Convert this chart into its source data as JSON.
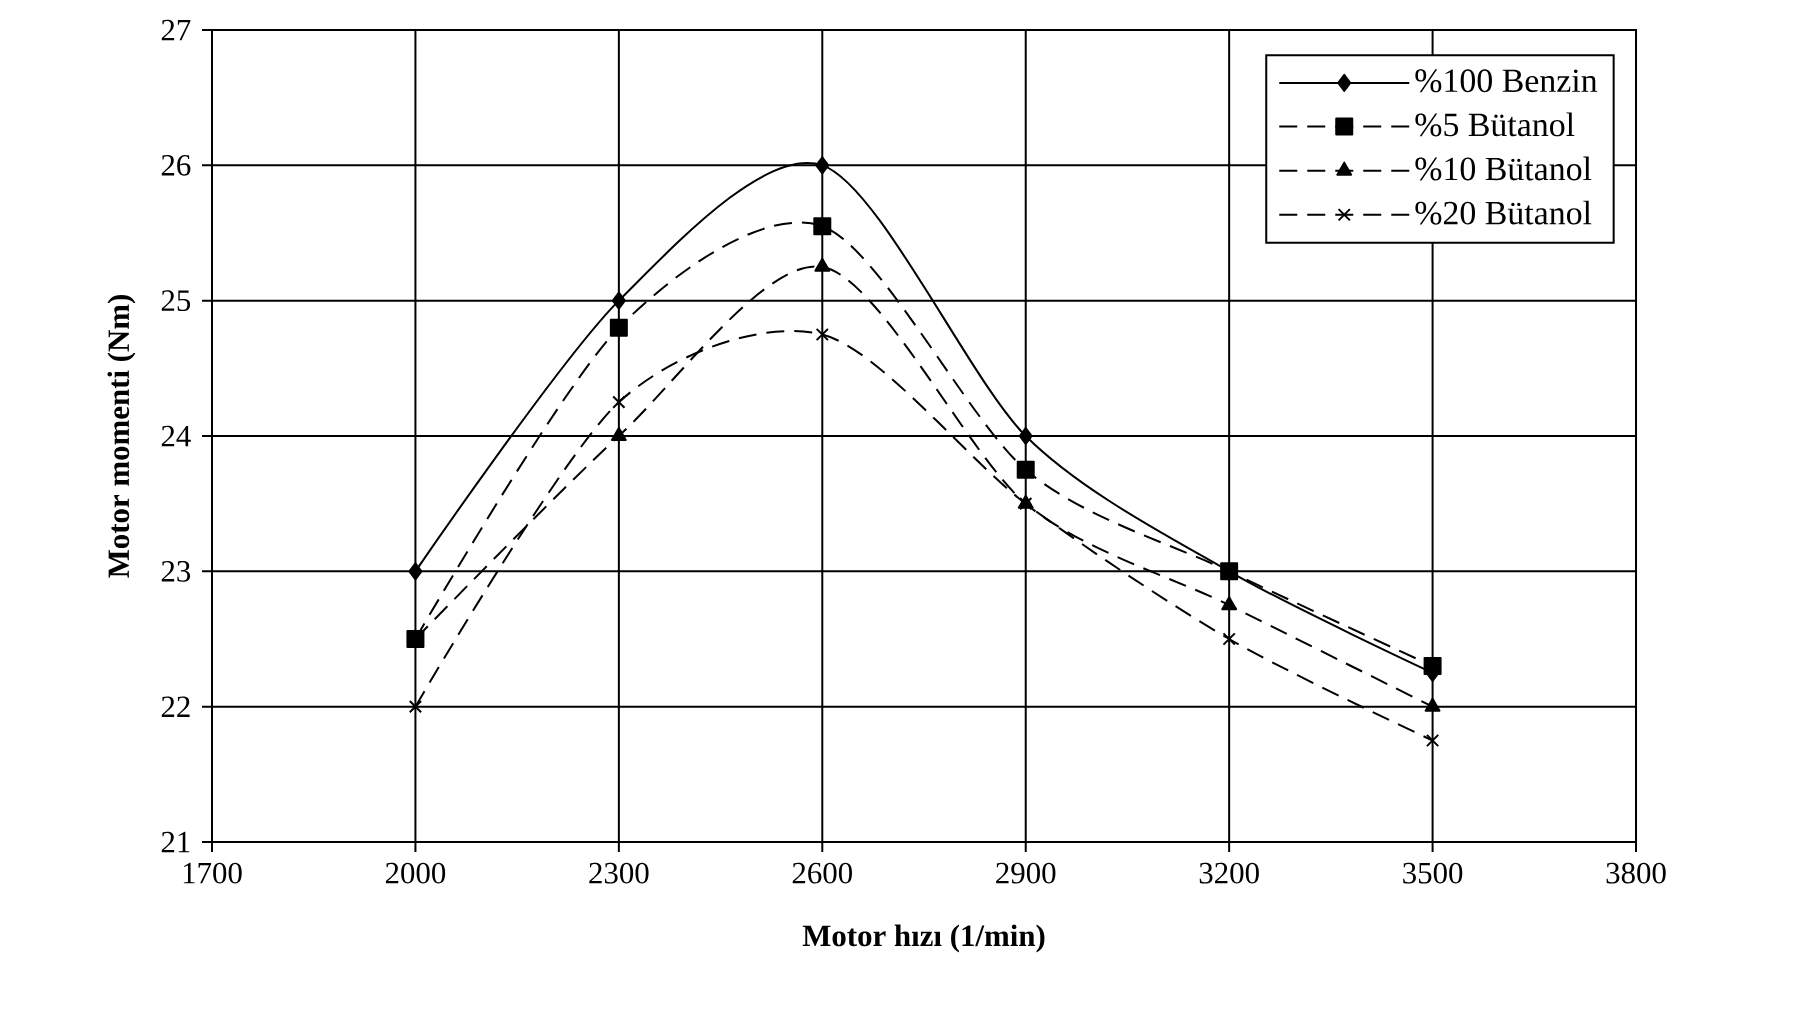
{
  "chart_data": {
    "type": "line",
    "xlabel": "Motor hızı (1/min)",
    "ylabel": "Motor momenti (Nm)",
    "x": [
      2000,
      2300,
      2600,
      2900,
      3200,
      3500
    ],
    "xlim": [
      1700,
      3800
    ],
    "xticks": [
      1700,
      2000,
      2300,
      2600,
      2900,
      3200,
      3500,
      3800
    ],
    "ylim": [
      21,
      27
    ],
    "yticks": [
      21,
      22,
      23,
      24,
      25,
      26,
      27
    ],
    "grid": true,
    "legend": "top right",
    "series": [
      {
        "name": "%100 Benzin",
        "color": "#000000",
        "marker": "diamond",
        "line_style": "solid",
        "values": [
          23,
          25,
          26,
          24,
          23,
          22.25
        ]
      },
      {
        "name": "%5 Bütanol",
        "color": "#000000",
        "marker": "square",
        "line_style": "dashed",
        "values": [
          22.5,
          24.8,
          25.55,
          23.75,
          23,
          22.3
        ]
      },
      {
        "name": "%10 Bütanol",
        "color": "#000000",
        "marker": "triangle",
        "line_style": "dashed",
        "values": [
          22.5,
          24,
          25.25,
          23.5,
          22.75,
          22
        ]
      },
      {
        "name": "%20 Bütanol",
        "color": "#000000",
        "marker": "cross",
        "line_style": "dashed",
        "values": [
          22,
          24.25,
          24.75,
          23.5,
          22.5,
          21.75
        ]
      }
    ]
  }
}
